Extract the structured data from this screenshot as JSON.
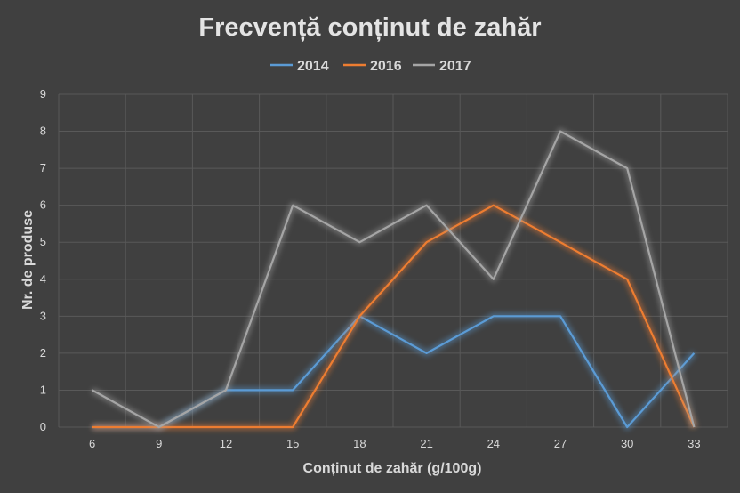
{
  "chart_data": {
    "type": "line",
    "title": "Frecvență conținut de zahăr",
    "xlabel": "Conținut de zahăr (g/100g)",
    "ylabel": "Nr. de produse",
    "x": [
      6,
      9,
      12,
      15,
      18,
      21,
      24,
      27,
      30,
      33
    ],
    "ylim": [
      0,
      9
    ],
    "yticks": [
      0,
      1,
      2,
      3,
      4,
      5,
      6,
      7,
      8,
      9
    ],
    "grid": true,
    "legend_position": "top",
    "series": [
      {
        "name": "2014",
        "color": "#5b9bd5",
        "values": [
          0,
          0,
          1,
          1,
          3,
          2,
          3,
          3,
          0,
          2
        ]
      },
      {
        "name": "2016",
        "color": "#ed7d31",
        "values": [
          0,
          0,
          0,
          0,
          3,
          5,
          6,
          5,
          4,
          0
        ]
      },
      {
        "name": "2017",
        "color": "#a5a5a5",
        "values": [
          1,
          0,
          1,
          6,
          5,
          6,
          4,
          8,
          7,
          0
        ]
      }
    ]
  }
}
